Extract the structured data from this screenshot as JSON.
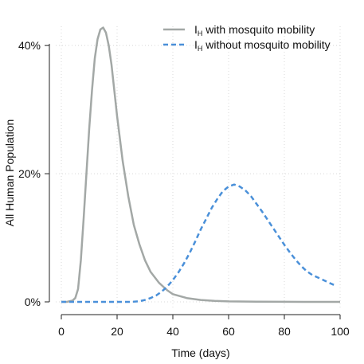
{
  "chart_data": {
    "type": "line",
    "xlabel": "Time (days)",
    "ylabel": "All Human Population",
    "xlim": [
      0,
      100
    ],
    "ylim": [
      0,
      0.43
    ],
    "x_ticks": [
      0,
      20,
      40,
      60,
      80,
      100
    ],
    "y_ticks": [
      0,
      0.2,
      0.4
    ],
    "x_tick_labels": [
      "0",
      "20",
      "40",
      "60",
      "80",
      "100"
    ],
    "y_tick_labels": [
      "0%",
      "20%",
      "40%"
    ],
    "grid": true,
    "legend_position": "top-right",
    "series": [
      {
        "name_main": "I",
        "name_sub": "H",
        "name_rest": " with mosquito mobility",
        "style": "solid",
        "color": "#a3a8a6",
        "x": [
          0,
          2,
          4,
          5,
          6,
          7,
          8,
          9,
          10,
          11,
          12,
          13,
          14,
          15,
          16,
          17,
          18,
          19,
          20,
          22,
          24,
          26,
          28,
          30,
          32,
          35,
          38,
          40,
          45,
          50,
          55,
          60,
          70,
          80,
          90,
          100
        ],
        "y": [
          0,
          0,
          0.002,
          0.006,
          0.02,
          0.065,
          0.13,
          0.2,
          0.27,
          0.33,
          0.38,
          0.41,
          0.425,
          0.428,
          0.42,
          0.4,
          0.37,
          0.33,
          0.29,
          0.22,
          0.165,
          0.12,
          0.09,
          0.065,
          0.047,
          0.03,
          0.018,
          0.012,
          0.006,
          0.003,
          0.0015,
          0.0008,
          0.0002,
          0.0001,
          0,
          0
        ]
      },
      {
        "name_main": "I",
        "name_sub": "H",
        "name_rest": " without mosquito mobility",
        "style": "dashed",
        "color": "#4a90d9",
        "x": [
          0,
          10,
          20,
          25,
          28,
          30,
          32,
          34,
          36,
          38,
          40,
          42,
          44,
          46,
          48,
          50,
          52,
          54,
          56,
          58,
          60,
          62,
          64,
          66,
          68,
          70,
          72,
          74,
          76,
          78,
          80,
          82,
          84,
          86,
          88,
          90,
          92,
          94,
          96,
          98
        ],
        "y": [
          0,
          0,
          0,
          0,
          0.001,
          0.003,
          0.006,
          0.01,
          0.016,
          0.024,
          0.034,
          0.046,
          0.06,
          0.076,
          0.094,
          0.113,
          0.13,
          0.147,
          0.161,
          0.173,
          0.18,
          0.183,
          0.18,
          0.174,
          0.165,
          0.153,
          0.141,
          0.128,
          0.115,
          0.102,
          0.089,
          0.077,
          0.066,
          0.056,
          0.048,
          0.042,
          0.038,
          0.034,
          0.03,
          0.026
        ]
      }
    ]
  }
}
